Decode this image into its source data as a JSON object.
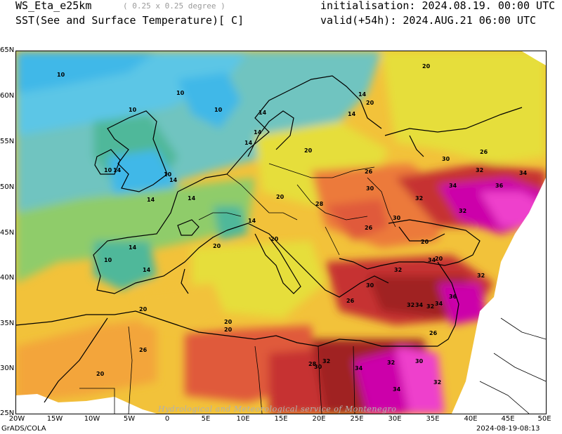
{
  "header": {
    "model": "WS_Eta_e25km",
    "resolution": "( 0.25 x 0.25 degree )",
    "variable": "SST(See and Surface Temperature)[ C]",
    "initialisation": "initialisation: 2024.08.19. 00:00 UTC",
    "valid": "valid(+54h): 2024.AUG.21 06:00 UTC"
  },
  "axes": {
    "lat_labels": [
      "55N",
      "50N",
      "45N",
      "40N",
      "35N",
      "30N",
      "25N"
    ],
    "lat_top": "65N",
    "lat_second": "60N",
    "lon_labels": [
      "20W",
      "15W",
      "10W",
      "5W",
      "0",
      "5E",
      "10E",
      "15E",
      "20E",
      "25E",
      "30E",
      "35E",
      "40E",
      "45E",
      "50E"
    ]
  },
  "footer": {
    "left": "GrADS/COLA",
    "right": "2024-08-19-08:13",
    "watermark": "Hydrological and Meteorological service of Montenegro"
  },
  "contour_labels": {
    "values": [
      "10",
      "14",
      "20",
      "26",
      "28",
      "30",
      "32",
      "34",
      "36"
    ]
  },
  "colors": {
    "t10": "#3fb8e8",
    "t12": "#5cc6e6",
    "t14": "#6fc4c0",
    "t16": "#4fb89a",
    "t18": "#8fcc6a",
    "t20": "#e6de3a",
    "t22": "#f2c23a",
    "t24": "#f3a53a",
    "t26": "#ec7a3a",
    "t28": "#e05a3a",
    "t30": "#c63030",
    "t32": "#a02020",
    "t34": "#cc00aa",
    "t36": "#ee40cc"
  }
}
